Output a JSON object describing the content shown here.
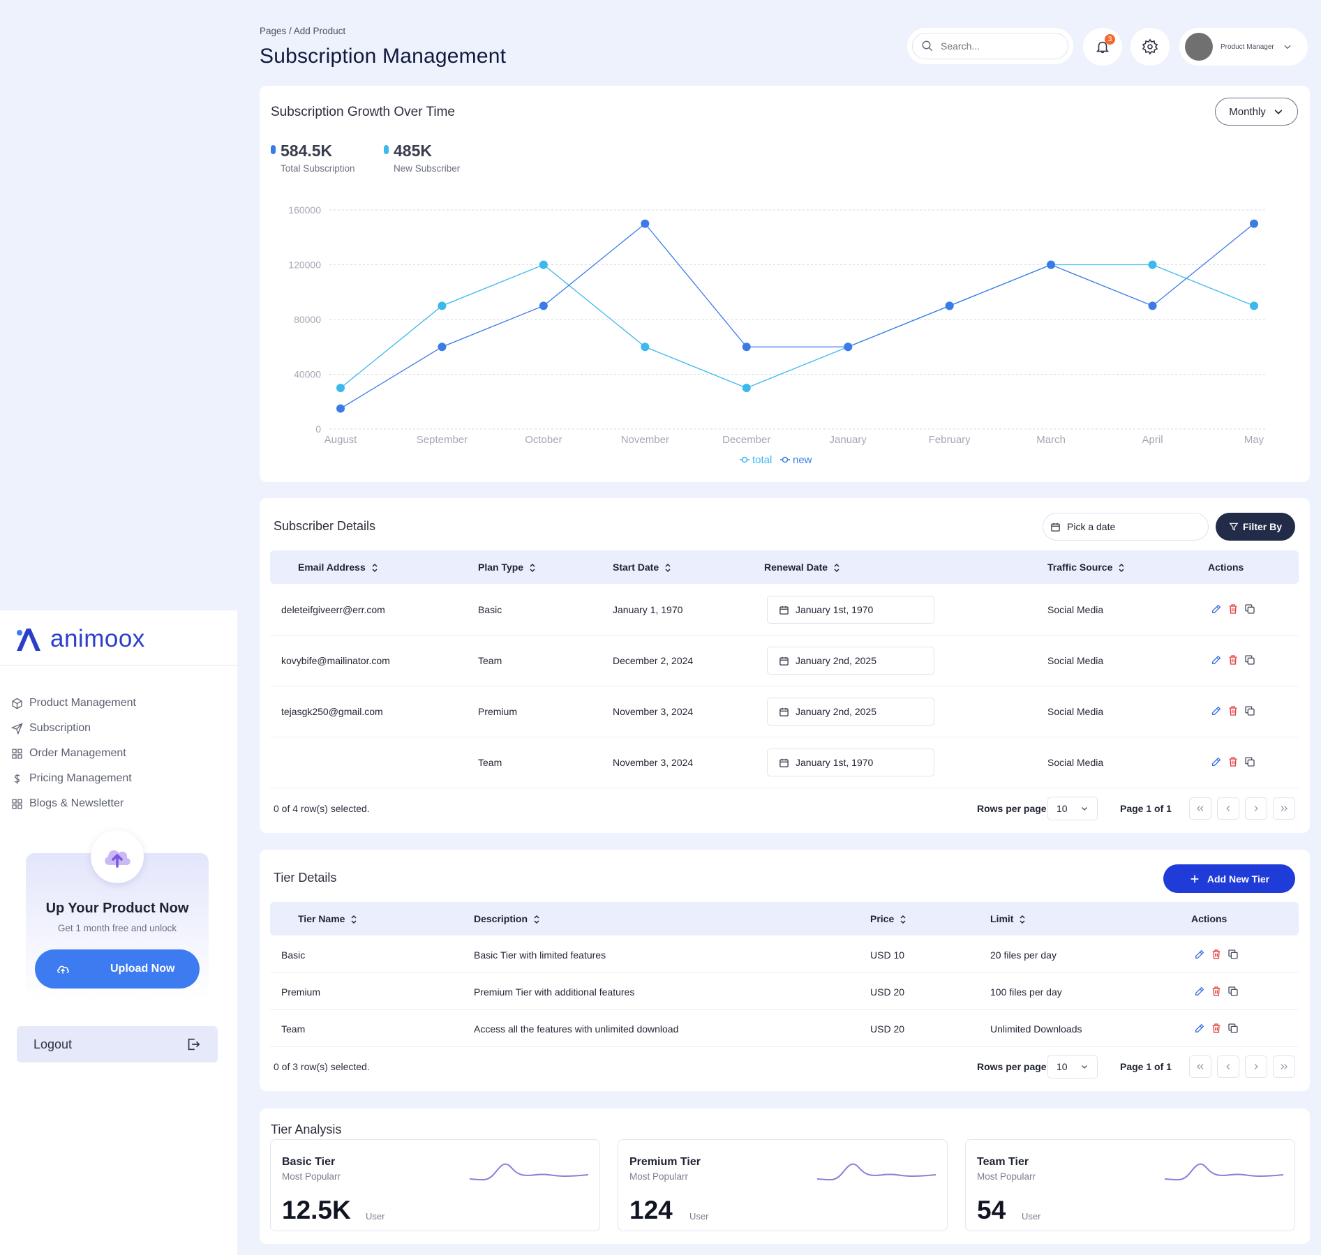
{
  "breadcrumb": "Pages / Add Product",
  "page_title": "Subscription Management",
  "header": {
    "search_placeholder": "Search...",
    "notification_count": "3",
    "profile_name": "Product Manager"
  },
  "sidebar": {
    "brand": "animoox",
    "items": [
      {
        "label": "Product Management",
        "icon": "box-icon"
      },
      {
        "label": "Subscription",
        "icon": "send-icon"
      },
      {
        "label": "Order Management",
        "icon": "grid-icon"
      },
      {
        "label": "Pricing Management",
        "icon": "dollar-icon"
      },
      {
        "label": "Blogs & Newsletter",
        "icon": "grid-icon"
      }
    ],
    "promo": {
      "title": "Up Your Product Now",
      "subtitle": "Get 1 month free and unlock",
      "button": "Upload Now"
    },
    "logout": "Logout"
  },
  "growth": {
    "title": "Subscription Growth Over Time",
    "period": "Monthly",
    "stats": [
      {
        "value": "584.5K",
        "label": "Total Subscription",
        "color": "#3b7be8"
      },
      {
        "value": "485K",
        "label": "New Subscriber",
        "color": "#3bb8ec"
      }
    ]
  },
  "chart_data": {
    "type": "line",
    "title": "Subscription Growth Over Time",
    "categories": [
      "August",
      "September",
      "October",
      "November",
      "December",
      "January",
      "February",
      "March",
      "April",
      "May"
    ],
    "series": [
      {
        "name": "total",
        "color": "#3bb8ec",
        "values": [
          30000,
          90000,
          120000,
          60000,
          30000,
          60000,
          90000,
          120000,
          120000,
          90000
        ]
      },
      {
        "name": "new",
        "color": "#3b7be8",
        "values": [
          15000,
          60000,
          90000,
          150000,
          60000,
          60000,
          90000,
          120000,
          90000,
          150000
        ]
      }
    ],
    "yticks": [
      0,
      40000,
      80000,
      120000,
      160000
    ],
    "ylim": [
      0,
      160000
    ],
    "grid": true,
    "legend": "bottom-center"
  },
  "subscribers": {
    "title": "Subscriber Details",
    "date_placeholder": "Pick a date",
    "filter_label": "Filter By",
    "columns": [
      "Email Address",
      "Plan Type",
      "Start Date",
      "Renewal Date",
      "Traffic Source",
      "Actions"
    ],
    "rows": [
      {
        "email": "deleteifgiveerr@err.com",
        "plan": "Basic",
        "start": "January 1, 1970",
        "renewal": "January 1st, 1970",
        "source": "Social Media"
      },
      {
        "email": "kovybife@mailinator.com",
        "plan": "Team",
        "start": "December 2, 2024",
        "renewal": "January 2nd, 2025",
        "source": "Social Media"
      },
      {
        "email": "tejasgk250@gmail.com",
        "plan": "Premium",
        "start": "November 3, 2024",
        "renewal": "January 2nd, 2025",
        "source": "Social Media"
      },
      {
        "email": "",
        "plan": "Team",
        "start": "November 3, 2024",
        "renewal": "January 1st, 1970",
        "source": "Social Media"
      }
    ],
    "selected_text": "0 of 4 row(s) selected.",
    "rows_per_page_label": "Rows per page",
    "rows_per_page": "10",
    "page_info": "Page 1 of 1"
  },
  "tiers": {
    "title": "Tier Details",
    "add_label": "Add New Tier",
    "columns": [
      "Tier Name",
      "Description",
      "Price",
      "Limit",
      "Actions"
    ],
    "rows": [
      {
        "name": "Basic",
        "description": "Basic Tier with limited features",
        "price": "USD 10",
        "limit": "20 files per day"
      },
      {
        "name": "Premium",
        "description": "Premium Tier with additional features",
        "price": "USD 20",
        "limit": "100 files per day"
      },
      {
        "name": "Team",
        "description": "Access all the features with unlimited download",
        "price": "USD 20",
        "limit": "Unlimited Downloads"
      }
    ],
    "selected_text": "0 of 3 row(s) selected.",
    "rows_per_page_label": "Rows per page",
    "rows_per_page": "10",
    "page_info": "Page 1 of 1"
  },
  "analysis": {
    "title": "Tier Analysis",
    "cards": [
      {
        "name": "Basic Tier",
        "subtitle": "Most Popularr",
        "value": "12.5K",
        "unit": "User"
      },
      {
        "name": "Premium Tier",
        "subtitle": "Most Popularr",
        "value": "124",
        "unit": "User"
      },
      {
        "name": "Team Tier",
        "subtitle": "Most Popularr",
        "value": "54",
        "unit": "User"
      }
    ]
  }
}
